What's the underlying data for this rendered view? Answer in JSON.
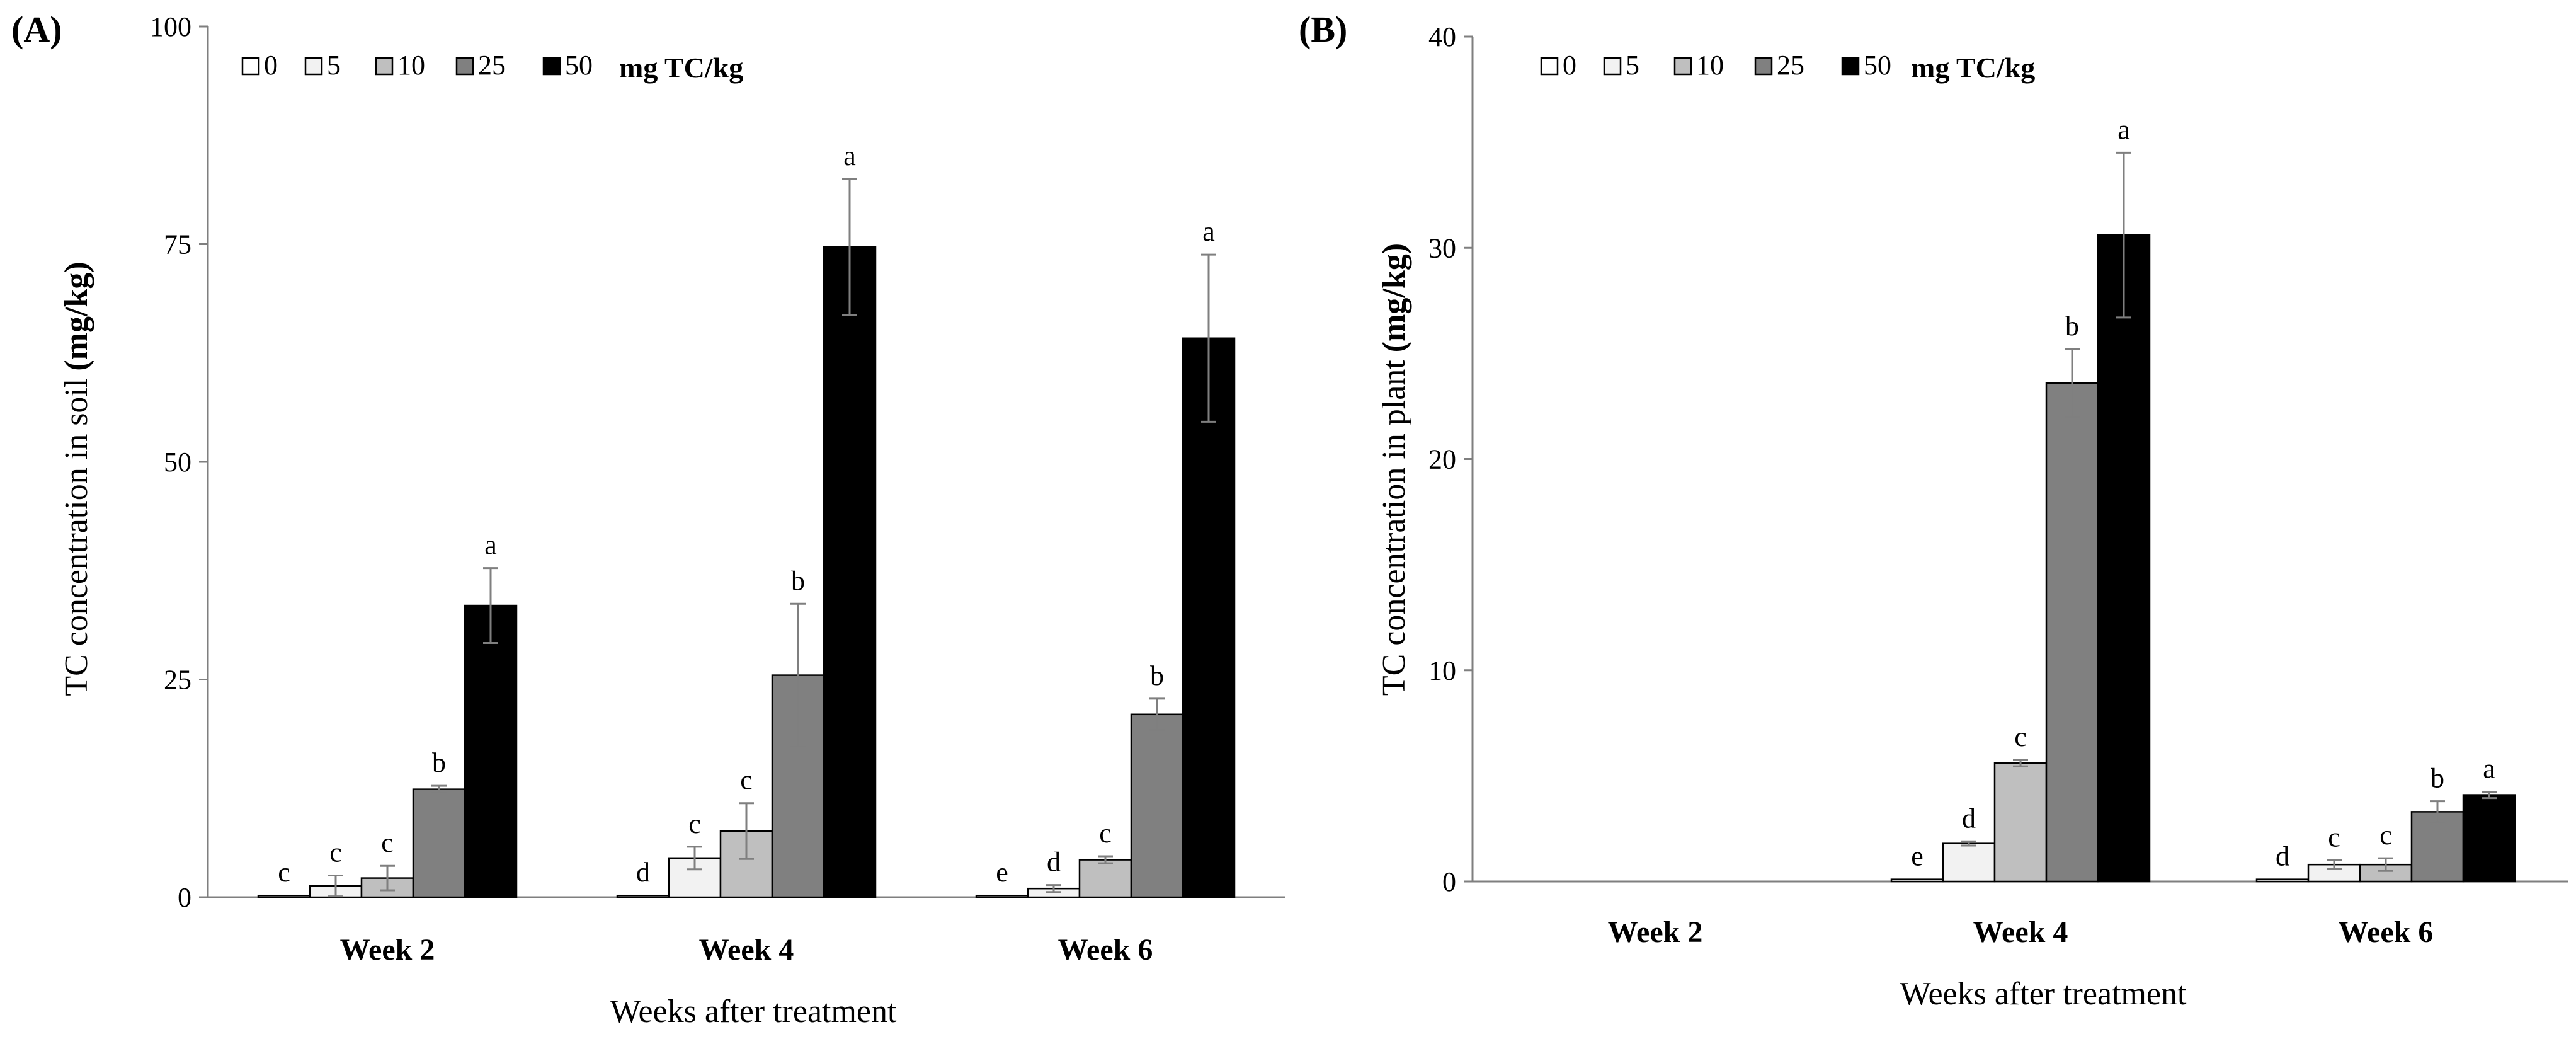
{
  "chart_data": [
    {
      "panel_label": "(A)",
      "type": "bar",
      "categories": [
        "Week 2",
        "Week 4",
        "Week 6"
      ],
      "xlabel": "Weeks after treatment",
      "ylabel_main": "TC concentration in soil",
      "ylabel_unit": "(mg/kg)",
      "ylim": [
        0,
        100
      ],
      "yticks": [
        "0",
        "25",
        "50",
        "75",
        "100"
      ],
      "legend_unit": "mg TC/kg",
      "series": [
        {
          "name": "0",
          "color": "#ffffff",
          "values": [
            0.2,
            0.2,
            0.2
          ],
          "errors": [
            0,
            0,
            0
          ],
          "letters": [
            "c",
            "d",
            "e"
          ]
        },
        {
          "name": "5",
          "color": "#f2f2f2",
          "values": [
            1.3,
            4.5,
            1.0
          ],
          "errors": [
            1.2,
            1.3,
            0.4
          ],
          "letters": [
            "c",
            "c",
            "d"
          ]
        },
        {
          "name": "10",
          "color": "#bfbfbf",
          "values": [
            2.2,
            7.6,
            4.3
          ],
          "errors": [
            1.4,
            3.2,
            0.4
          ],
          "letters": [
            "c",
            "c",
            "c"
          ]
        },
        {
          "name": "25",
          "color": "#808080",
          "values": [
            12.4,
            25.5,
            21.0
          ],
          "errors": [
            0.4,
            8.2,
            1.8
          ],
          "letters": [
            "b",
            "b",
            "b"
          ]
        },
        {
          "name": "50",
          "color": "#000000",
          "values": [
            33.5,
            74.7,
            64.2
          ],
          "errors": [
            4.3,
            7.8,
            9.6
          ],
          "letters": [
            "a",
            "a",
            "a"
          ]
        }
      ]
    },
    {
      "panel_label": "(B)",
      "type": "bar",
      "categories": [
        "Week 2",
        "Week 4",
        "Week 6"
      ],
      "xlabel": "Weeks after treatment",
      "ylabel_main": "TC concentration in plant",
      "ylabel_unit": "(mg/kg)",
      "ylim": [
        0,
        40
      ],
      "yticks": [
        "0",
        "10",
        "20",
        "30",
        "40"
      ],
      "legend_unit": "mg TC/kg",
      "series": [
        {
          "name": "0",
          "color": "#ffffff",
          "values": [
            0,
            0.1,
            0.1
          ],
          "errors": [
            0,
            0,
            0
          ],
          "letters": [
            "",
            "e",
            "d"
          ]
        },
        {
          "name": "5",
          "color": "#f2f2f2",
          "values": [
            0,
            1.8,
            0.8
          ],
          "errors": [
            0,
            0.1,
            0.2
          ],
          "letters": [
            "",
            "d",
            "c"
          ]
        },
        {
          "name": "10",
          "color": "#bfbfbf",
          "values": [
            0,
            5.6,
            0.8
          ],
          "errors": [
            0,
            0.15,
            0.3
          ],
          "letters": [
            "",
            "c",
            "c"
          ]
        },
        {
          "name": "25",
          "color": "#808080",
          "values": [
            0,
            23.6,
            3.3
          ],
          "errors": [
            0,
            1.6,
            0.5
          ],
          "letters": [
            "",
            "b",
            "b"
          ]
        },
        {
          "name": "50",
          "color": "#000000",
          "values": [
            0,
            30.6,
            4.1
          ],
          "errors": [
            0,
            3.9,
            0.15
          ],
          "letters": [
            "",
            "a",
            "a"
          ]
        }
      ]
    }
  ]
}
